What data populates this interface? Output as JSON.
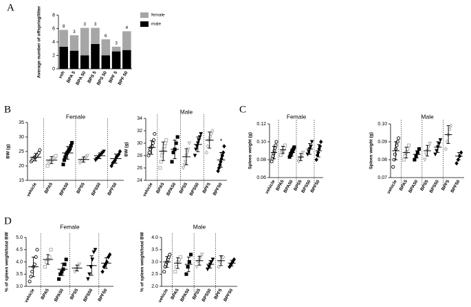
{
  "panels": [
    "A",
    "B",
    "C",
    "D"
  ],
  "chart_data": [
    {
      "type": "bar",
      "ylabel": "Average number of offspring/litter",
      "categories": [
        "veh",
        "BPA 5",
        "BPA 50",
        "BPS 5",
        "BPS 50",
        "BPF 5",
        "BPF 50"
      ],
      "series": [
        {
          "name": "male",
          "color": "#000000",
          "values": [
            3.3,
            2.7,
            2.0,
            3.7,
            2.0,
            2.6,
            2.8
          ]
        },
        {
          "name": "female",
          "color": "#a6a6a6",
          "values": [
            2.5,
            2.3,
            4.1,
            2.4,
            2.4,
            0.7,
            2.8
          ]
        }
      ],
      "annotations": [
        8,
        3,
        3,
        3,
        6,
        3,
        4
      ],
      "ylim": [
        0,
        8
      ],
      "yticks": [
        0,
        2,
        4,
        6,
        8
      ]
    },
    {
      "type": "dot",
      "title": "Female",
      "ylabel": "BW (g)",
      "categories": [
        "vehicle",
        "BPA5",
        "BPA50",
        "BPS5",
        "BPS50",
        "BPF50"
      ],
      "points": [
        [
          21.5,
          22,
          22.5,
          23,
          23,
          23.5,
          24,
          24.5,
          25.5
        ],
        [
          20,
          21,
          21.5,
          22,
          22.5,
          23,
          23.5
        ],
        [
          20.5,
          22,
          23,
          24,
          24.5,
          25,
          25.5,
          26,
          27,
          28
        ],
        [
          21,
          21.5,
          22,
          22.5,
          23,
          23.5
        ],
        [
          22,
          22.5,
          23,
          23.5,
          24,
          24.5,
          25
        ],
        [
          20,
          21,
          21.5,
          22,
          23,
          23.5,
          24,
          25
        ]
      ],
      "means": [
        23,
        22,
        24.5,
        22.2,
        23.5,
        22.5
      ],
      "errors": [
        1.3,
        1.2,
        2.2,
        0.9,
        1.0,
        1.6
      ],
      "marker_shapes": [
        "circle",
        "square",
        "square",
        "triangle",
        "triangle",
        "diamond"
      ],
      "marker_colors": [
        "#000000",
        "#a6a6a6",
        "#000000",
        "#a6a6a6",
        "#000000",
        "#000000"
      ],
      "marker_filled": [
        false,
        false,
        true,
        false,
        true,
        true
      ],
      "ylim": [
        15,
        35
      ],
      "yticks": [
        15,
        20,
        25,
        30,
        35
      ]
    },
    {
      "type": "dot",
      "title": "Male",
      "ylabel": "BW (g)",
      "categories": [
        "vehicle",
        "BPA5",
        "BPA50",
        "BPS5",
        "BPS50",
        "BPF5",
        "BPF50"
      ],
      "points": [
        [
          28,
          28.5,
          29,
          29.3,
          29.5,
          30,
          30.5,
          31.5
        ],
        [
          26,
          27,
          28,
          28.5,
          29,
          29.5,
          30,
          30.5
        ],
        [
          27,
          28.5,
          29,
          30,
          31
        ],
        [
          26,
          26.5,
          27,
          28,
          28.5,
          29,
          30
        ],
        [
          28,
          29,
          29.5,
          30,
          30.5,
          31,
          31.5
        ],
        [
          28.5,
          29.5,
          30.5,
          31,
          31.5,
          32
        ],
        [
          25.5,
          26,
          26.5,
          27,
          27.5,
          28,
          28.5,
          29.5
        ]
      ],
      "means": [
        29.3,
        28.7,
        29,
        27.8,
        29.8,
        30.5,
        27.3
      ],
      "errors": [
        1.1,
        1.5,
        1.5,
        1.3,
        1.2,
        1.3,
        1.2
      ],
      "marker_shapes": [
        "circle",
        "square",
        "square",
        "triangle",
        "triangle",
        "diamond",
        "diamond"
      ],
      "marker_colors": [
        "#000000",
        "#a6a6a6",
        "#000000",
        "#a6a6a6",
        "#000000",
        "#a6a6a6",
        "#000000"
      ],
      "marker_filled": [
        false,
        false,
        true,
        false,
        true,
        false,
        true
      ],
      "annotation": {
        "text": "*",
        "category": "BPF50"
      },
      "ylim": [
        24,
        34
      ],
      "yticks": [
        24,
        26,
        28,
        30,
        32,
        34
      ]
    },
    {
      "type": "dot",
      "title": "Female",
      "ylabel": "Spleen weight (g)",
      "categories": [
        "vehicle",
        "BPA5",
        "BPA50",
        "BPS5",
        "BPS50",
        "BPF50"
      ],
      "points": [
        [
          0.078,
          0.081,
          0.084,
          0.087,
          0.09,
          0.093,
          0.096,
          0.1
        ],
        [
          0.085,
          0.088,
          0.09,
          0.093,
          0.096
        ],
        [
          0.083,
          0.085,
          0.087,
          0.089,
          0.09,
          0.092,
          0.094
        ],
        [
          0.078,
          0.08,
          0.082,
          0.085,
          0.088
        ],
        [
          0.086,
          0.089,
          0.092,
          0.095,
          0.1
        ],
        [
          0.08,
          0.085,
          0.088,
          0.092,
          0.095,
          0.1
        ]
      ],
      "means": [
        0.088,
        0.091,
        0.088,
        0.083,
        0.092,
        0.09
      ],
      "errors": [
        0.007,
        0.004,
        0.004,
        0.004,
        0.006,
        0.007
      ],
      "marker_shapes": [
        "circle",
        "square",
        "square",
        "triangle",
        "triangle",
        "diamond"
      ],
      "marker_colors": [
        "#000000",
        "#a6a6a6",
        "#000000",
        "#a6a6a6",
        "#000000",
        "#000000"
      ],
      "marker_filled": [
        false,
        false,
        true,
        false,
        true,
        true
      ],
      "ylim": [
        0.06,
        0.12
      ],
      "yticks": [
        0.06,
        0.08,
        {
          "value": 0.1,
          "label": "0.10"
        },
        0.12
      ]
    },
    {
      "type": "dot",
      "title": "Male",
      "ylabel": "Spleen weight (g)",
      "categories": [
        "vehicle",
        "BPA5",
        "BPA50",
        "BPS5",
        "BPS50",
        "BPF5",
        "BPF50"
      ],
      "points": [
        [
          0.076,
          0.08,
          0.083,
          0.086,
          0.088,
          0.09,
          0.092
        ],
        [
          0.08,
          0.082,
          0.084,
          0.086,
          0.088
        ],
        [
          0.08,
          0.082,
          0.084,
          0.086
        ],
        [
          0.08,
          0.083,
          0.085,
          0.087,
          0.089
        ],
        [
          0.083,
          0.085,
          0.087,
          0.089,
          0.091
        ],
        [
          0.086,
          0.09,
          0.094,
          0.097,
          0.099
        ],
        [
          0.078,
          0.08,
          0.082,
          0.084
        ]
      ],
      "means": [
        0.085,
        0.084,
        0.083,
        0.085,
        0.087,
        0.094,
        0.082
      ],
      "errors": [
        0.005,
        0.003,
        0.002,
        0.003,
        0.003,
        0.005,
        0.002
      ],
      "marker_shapes": [
        "circle",
        "square",
        "square",
        "triangle",
        "triangle",
        "diamond",
        "diamond"
      ],
      "marker_colors": [
        "#000000",
        "#a6a6a6",
        "#000000",
        "#a6a6a6",
        "#000000",
        "#a6a6a6",
        "#000000"
      ],
      "marker_filled": [
        false,
        false,
        true,
        false,
        true,
        false,
        true
      ],
      "ylim": [
        0.07,
        0.1
      ],
      "yticks": [
        0.07,
        0.08,
        0.09,
        {
          "value": 0.1,
          "label": "0.10"
        }
      ]
    },
    {
      "type": "dot",
      "title": "Female",
      "ylabel": "% of spleen weight/total BW",
      "categories": [
        "vehicle",
        "BPA5",
        "BPA50",
        "BPS5",
        "BPS50",
        "BPF50"
      ],
      "points": [
        [
          3.2,
          3.4,
          3.6,
          3.8,
          3.9,
          4.2,
          4.5
        ],
        [
          3.8,
          4.0,
          4.1,
          4.2,
          4.5
        ],
        [
          3.3,
          3.5,
          3.6,
          3.7,
          3.9,
          4.1
        ],
        [
          3.6,
          3.7,
          3.8,
          3.9
        ],
        [
          3.3,
          3.5,
          3.8,
          4.1,
          4.4,
          4.5
        ],
        [
          3.6,
          3.8,
          3.9,
          4.0,
          4.2,
          4.3
        ]
      ],
      "means": [
        3.8,
        4.1,
        3.7,
        3.75,
        3.85,
        3.95
      ],
      "errors": [
        0.4,
        0.2,
        0.25,
        0.12,
        0.4,
        0.22
      ],
      "marker_shapes": [
        "circle",
        "square",
        "square",
        "triangle",
        "triangle",
        "diamond"
      ],
      "marker_colors": [
        "#000000",
        "#a6a6a6",
        "#000000",
        "#a6a6a6",
        "#000000",
        "#000000"
      ],
      "marker_filled": [
        false,
        false,
        true,
        false,
        true,
        true
      ],
      "ylim": [
        3,
        5
      ],
      "yticks": [
        {
          "value": 3,
          "label": "3.0"
        },
        3.5,
        {
          "value": 4,
          "label": "4.0"
        },
        4.5,
        {
          "value": 5,
          "label": "5.0"
        }
      ]
    },
    {
      "type": "dot",
      "title": "Male",
      "ylabel": "% of spleen weight/total BW",
      "categories": [
        "vehicle",
        "BPA5",
        "BPA50",
        "BPS5",
        "BPS50",
        "BPF5",
        "BPF50"
      ],
      "points": [
        [
          2.6,
          2.8,
          2.9,
          3.0,
          3.1,
          3.2,
          3.3
        ],
        [
          2.6,
          2.8,
          3.0,
          3.1,
          3.2
        ],
        [
          2.5,
          2.8,
          3.0,
          3.3
        ],
        [
          2.8,
          3.0,
          3.1,
          3.2,
          3.3
        ],
        [
          2.7,
          2.8,
          2.9,
          3.0,
          3.1
        ],
        [
          2.8,
          3.0,
          3.2,
          3.2
        ],
        [
          2.8,
          2.9,
          3.0,
          3.1
        ]
      ],
      "means": [
        3.0,
        2.95,
        2.9,
        3.05,
        2.9,
        3.05,
        2.95
      ],
      "errors": [
        0.22,
        0.22,
        0.3,
        0.18,
        0.15,
        0.2,
        0.12
      ],
      "marker_shapes": [
        "circle",
        "square",
        "square",
        "triangle",
        "triangle",
        "diamond",
        "diamond"
      ],
      "marker_colors": [
        "#000000",
        "#a6a6a6",
        "#000000",
        "#a6a6a6",
        "#000000",
        "#a6a6a6",
        "#000000"
      ],
      "marker_filled": [
        false,
        false,
        true,
        false,
        true,
        false,
        true
      ],
      "ylim": [
        2,
        4
      ],
      "yticks": [
        {
          "value": 2,
          "label": "2.0"
        },
        2.5,
        {
          "value": 3,
          "label": "3.0"
        },
        3.5,
        {
          "value": 4,
          "label": "4.0"
        }
      ]
    }
  ]
}
